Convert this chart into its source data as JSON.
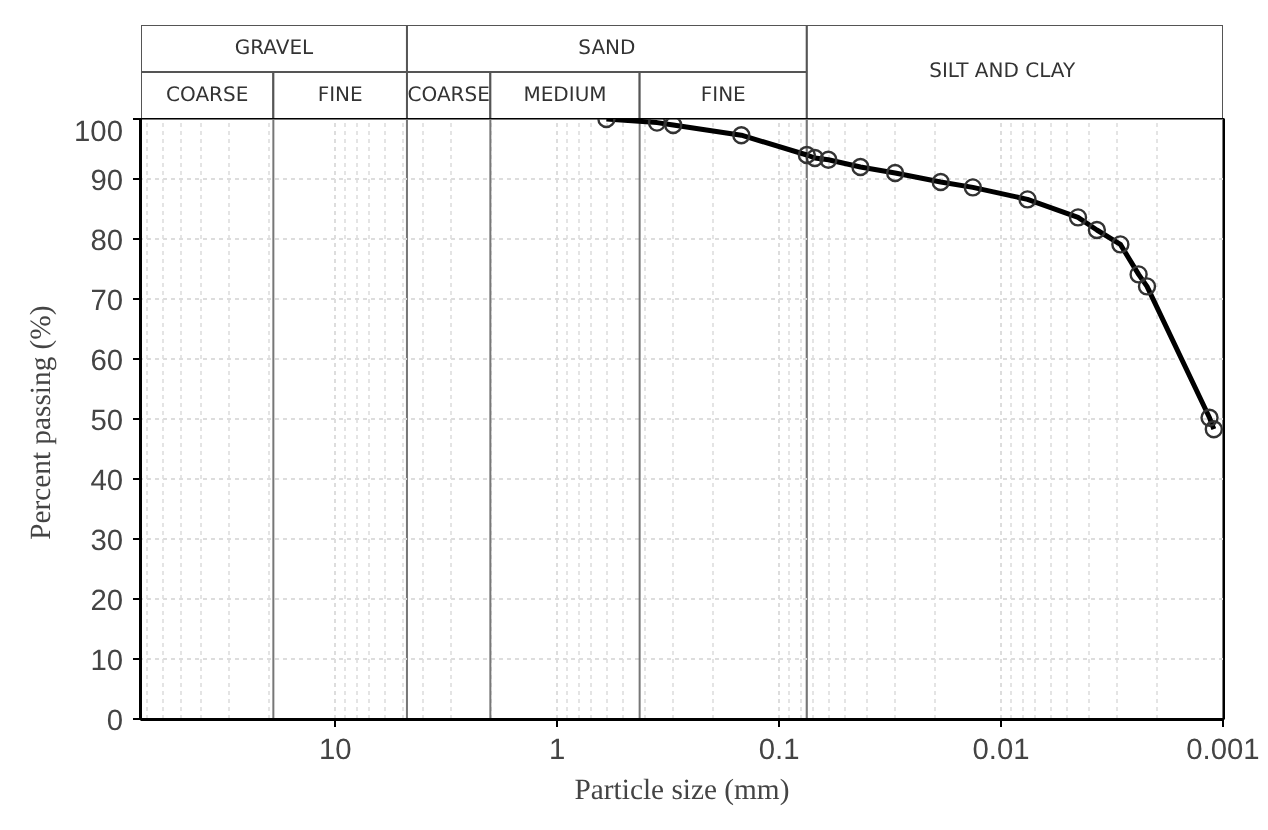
{
  "chart_data": {
    "type": "line",
    "xlabel": "Particle size (mm)",
    "ylabel": "Percent passing  (%)",
    "log": "x",
    "xlim": [
      75,
      0.001
    ],
    "xticks": [
      10,
      1,
      0.1,
      0.01,
      0.001
    ],
    "ylim": [
      0,
      100
    ],
    "yticks": [
      0,
      10,
      20,
      30,
      40,
      50,
      60,
      70,
      80,
      90,
      100
    ],
    "grid": true,
    "marker": "circle",
    "line_style": "solid",
    "series": [
      {
        "color": "#000000",
        "x": [
          0.6,
          0.355,
          0.3,
          0.148,
          0.075,
          0.069,
          0.06,
          0.043,
          0.03,
          0.0187,
          0.0134,
          0.0076,
          0.0045,
          0.0037,
          0.0029,
          0.0024,
          0.0022,
          0.00115,
          0.0011
        ],
        "values": [
          100,
          99.4,
          99,
          97.3,
          94,
          93.5,
          93.2,
          92,
          91,
          89.5,
          88.6,
          86.6,
          83.6,
          81.5,
          79.1,
          74.1,
          72.1,
          50.2,
          48.3
        ]
      }
    ],
    "ref_lines": [
      {
        "axis": "x",
        "value": 19,
        "label": null,
        "color": "#777777"
      },
      {
        "axis": "x",
        "value": 2,
        "label": null,
        "color": "#777777"
      },
      {
        "axis": "x",
        "value": 0.425,
        "label": null,
        "color": "#777777"
      }
    ],
    "bands": [
      {
        "axis": "x",
        "from": 75,
        "to": 4.75,
        "label": "GRAVEL"
      },
      {
        "axis": "x",
        "from": 4.75,
        "to": 0.075,
        "label": "SAND"
      },
      {
        "axis": "x",
        "from": 0.075,
        "to": 0.001,
        "label": "SILT   AND   CLAY"
      }
    ],
    "annotations": [
      "COARSE",
      "FINE",
      "COARSE",
      "MEDIUM",
      "FINE"
    ]
  }
}
